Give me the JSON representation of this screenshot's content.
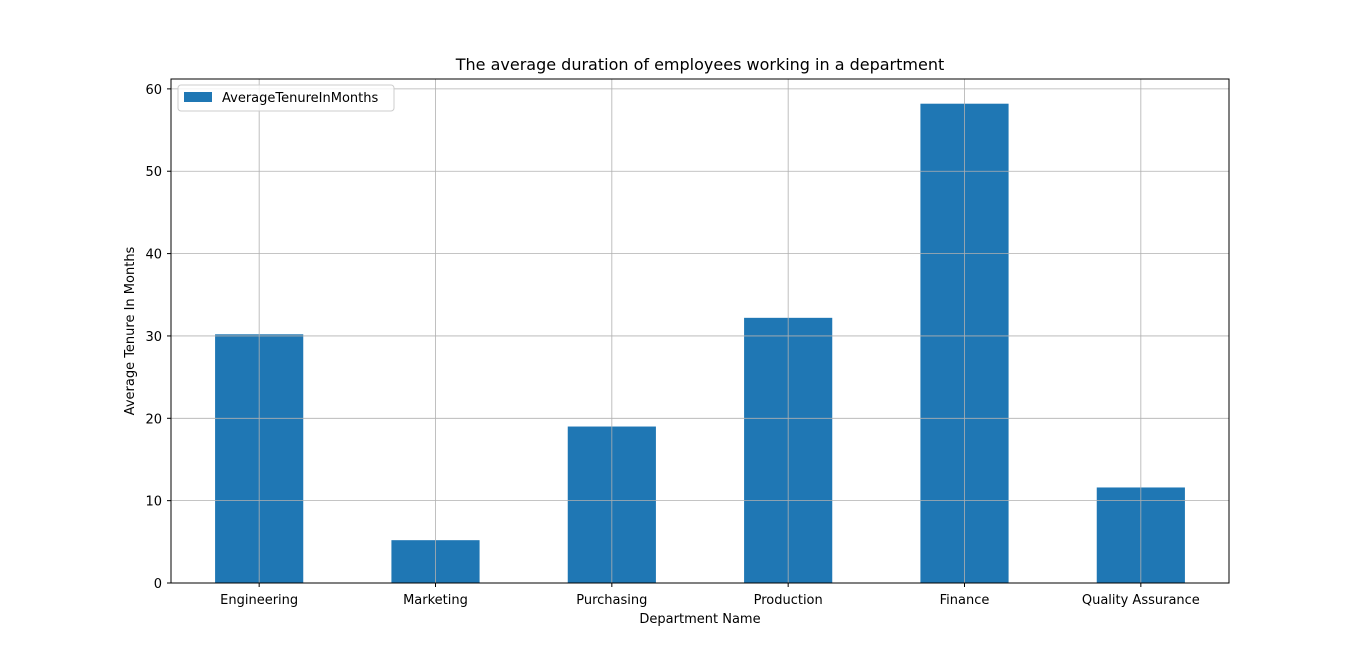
{
  "chart_data": {
    "type": "bar",
    "title": "The average duration of employees working in a department",
    "xlabel": "Department Name",
    "ylabel": "Average Tenure In Months",
    "categories": [
      "Engineering",
      "Marketing",
      "Purchasing",
      "Production",
      "Finance",
      "Quality Assurance"
    ],
    "series": [
      {
        "name": "AverageTenureInMonths",
        "values": [
          30.2,
          5.2,
          19.0,
          32.2,
          58.2,
          11.6
        ],
        "color": "#1f77b4"
      }
    ],
    "ylim": [
      0,
      61.2
    ],
    "yticks": [
      0,
      10,
      20,
      30,
      40,
      50,
      60
    ],
    "grid": true,
    "legend_position": "top-left"
  }
}
